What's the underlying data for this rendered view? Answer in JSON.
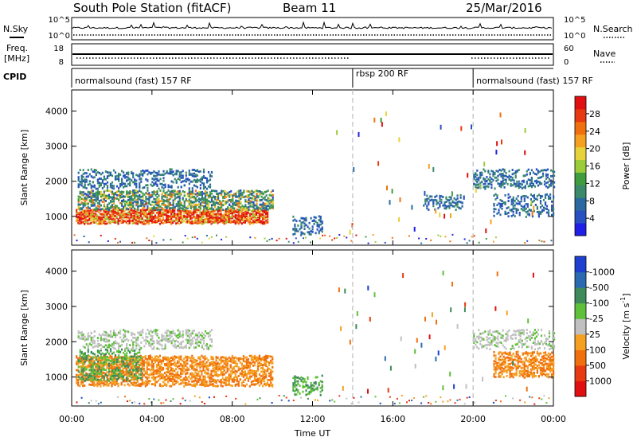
{
  "header": {
    "station": "South Pole Station (fitACF)",
    "beam": "Beam 11",
    "date": "25/Mar/2016"
  },
  "strip_labels": {
    "nsky": "N.Sky",
    "nsearch": "N.Search",
    "freq_line1": "Freq.",
    "freq_line2": "[MHz]",
    "nave": "Nave",
    "cpid": "CPID"
  },
  "strip_ticks": {
    "noise_left": [
      "10^5",
      "10^0"
    ],
    "noise_right": [
      "10^5",
      "10^0"
    ],
    "freq_left": [
      "18",
      "8"
    ],
    "nave_right": [
      "60",
      "0"
    ]
  },
  "cpid_segments": [
    {
      "label": "normalsound (fast) 157 RF",
      "start_hour": 0,
      "end_hour": 14
    },
    {
      "label": "rbsp 200 RF",
      "start_hour": 14,
      "end_hour": 20
    },
    {
      "label": "normalsound (fast) 157 RF",
      "start_hour": 20,
      "end_hour": 24
    }
  ],
  "chart_data": [
    {
      "type": "heatmap",
      "name": "power-panel",
      "xlabel": "",
      "ylabel": "Slant Range [km]",
      "xlim": [
        0,
        24
      ],
      "ylim": [
        180,
        4600
      ],
      "x_ticks": [
        "00:00",
        "04:00",
        "08:00",
        "12:00",
        "16:00",
        "20:00",
        "00:00"
      ],
      "y_ticks": [
        1000,
        2000,
        3000,
        4000
      ],
      "mode_change_hours": [
        14,
        20
      ],
      "colorbar": {
        "label": "Power [dB]",
        "ticks": [
          "4",
          "8",
          "12",
          "16",
          "20",
          "24",
          "28"
        ],
        "colors": [
          "#1f1fe6",
          "#2850c0",
          "#2a6aa0",
          "#3b8a6a",
          "#3f9c3f",
          "#9ccc3a",
          "#e6d23a",
          "#f5a020",
          "#f07010",
          "#e83a10",
          "#e01010"
        ]
      },
      "echo_regions": [
        {
          "h0": 0.2,
          "h1": 9.8,
          "r0": 800,
          "r1": 1200,
          "intensity": "high"
        },
        {
          "h0": 0.3,
          "h1": 10.0,
          "r0": 1200,
          "r1": 1700,
          "intensity": "medium"
        },
        {
          "h0": 0.3,
          "h1": 7.0,
          "r0": 1800,
          "r1": 2300,
          "intensity": "low"
        },
        {
          "h0": 11.0,
          "h1": 12.5,
          "r0": 500,
          "r1": 1000,
          "intensity": "low"
        },
        {
          "h0": 17.5,
          "h1": 19.5,
          "r0": 1200,
          "r1": 1600,
          "intensity": "low"
        },
        {
          "h0": 20.0,
          "h1": 24.0,
          "r0": 1800,
          "r1": 2300,
          "intensity": "low"
        },
        {
          "h0": 21.0,
          "h1": 24.0,
          "r0": 1000,
          "r1": 1600,
          "intensity": "low"
        }
      ]
    },
    {
      "type": "heatmap",
      "name": "velocity-panel",
      "xlabel": "Time UT",
      "ylabel": "Slant Range [km]",
      "xlim": [
        0,
        24
      ],
      "ylim": [
        180,
        4600
      ],
      "x_ticks": [
        "00:00",
        "04:00",
        "08:00",
        "12:00",
        "16:00",
        "20:00",
        "00:00"
      ],
      "y_ticks": [
        1000,
        2000,
        3000,
        4000
      ],
      "mode_change_hours": [
        14,
        20
      ],
      "colorbar": {
        "label_main": "Velocity",
        "label_units": "[m s",
        "label_exp": "-1",
        "label_close": "]",
        "ticks": [
          "1000",
          "500",
          "100",
          "25",
          "-25",
          "-100",
          "-500",
          "-1000"
        ],
        "colors": [
          "#1f3fd0",
          "#2a6ab0",
          "#3f8a5a",
          "#5fc03a",
          "#c0c0c0",
          "#f5a020",
          "#f07010",
          "#e83a10",
          "#e01010"
        ]
      },
      "echo_regions": [
        {
          "h0": 0.2,
          "h1": 10.0,
          "r0": 750,
          "r1": 1600,
          "intensity": "away"
        },
        {
          "h0": 0.3,
          "h1": 3.5,
          "r0": 900,
          "r1": 1800,
          "intensity": "toward"
        },
        {
          "h0": 0.3,
          "h1": 7.0,
          "r0": 1800,
          "r1": 2300,
          "intensity": "grey"
        },
        {
          "h0": 11.0,
          "h1": 12.5,
          "r0": 500,
          "r1": 1000,
          "intensity": "toward"
        },
        {
          "h0": 20.0,
          "h1": 24.0,
          "r0": 1800,
          "r1": 2300,
          "intensity": "grey"
        },
        {
          "h0": 21.0,
          "h1": 24.0,
          "r0": 1000,
          "r1": 1700,
          "intensity": "away"
        }
      ]
    }
  ]
}
